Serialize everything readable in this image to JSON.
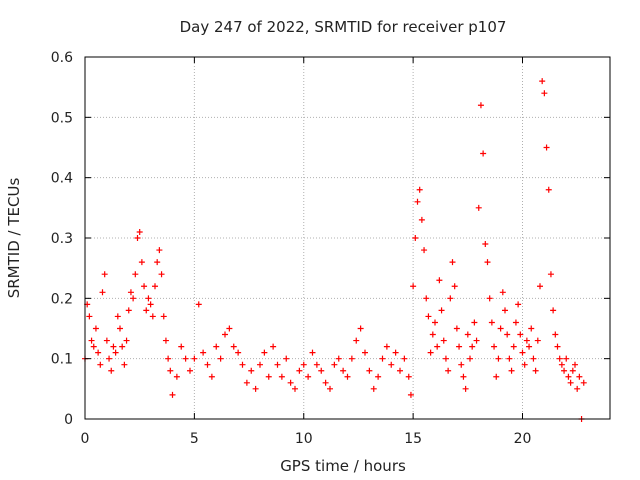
{
  "chart_data": {
    "type": "scatter",
    "title": "Day 247 of 2022, SRMTID for receiver p107",
    "xlabel": "GPS time / hours",
    "ylabel": "SRMTID / TECUs",
    "xlim": [
      0,
      24
    ],
    "ylim": [
      0,
      0.6
    ],
    "xticks": [
      0,
      5,
      10,
      15,
      20
    ],
    "yticks": [
      0,
      0.1,
      0.2,
      0.3,
      0.4,
      0.5,
      0.6
    ],
    "xtick_labels": [
      "0",
      "5",
      "10",
      "15",
      "20"
    ],
    "ytick_labels": [
      "0",
      "0.1",
      "0.2",
      "0.3",
      "0.4",
      "0.5",
      "0.6"
    ],
    "grid": true,
    "marker": "+",
    "color": "#ff0000",
    "series": [
      {
        "name": "SRMTID",
        "x": [
          0.0,
          0.1,
          0.2,
          0.3,
          0.4,
          0.5,
          0.6,
          0.7,
          0.8,
          0.9,
          1.0,
          1.1,
          1.2,
          1.3,
          1.4,
          1.5,
          1.6,
          1.7,
          1.8,
          1.9,
          2.0,
          2.1,
          2.2,
          2.3,
          2.4,
          2.5,
          2.6,
          2.7,
          2.8,
          2.9,
          3.0,
          3.1,
          3.2,
          3.3,
          3.4,
          3.5,
          3.6,
          3.7,
          3.8,
          3.9,
          4.0,
          4.2,
          4.4,
          4.6,
          4.8,
          5.0,
          5.2,
          5.4,
          5.6,
          5.8,
          6.0,
          6.2,
          6.4,
          6.6,
          6.8,
          7.0,
          7.2,
          7.4,
          7.6,
          7.8,
          8.0,
          8.2,
          8.4,
          8.6,
          8.8,
          9.0,
          9.2,
          9.4,
          9.6,
          9.8,
          10.0,
          10.2,
          10.4,
          10.6,
          10.8,
          11.0,
          11.2,
          11.4,
          11.6,
          11.8,
          12.0,
          12.2,
          12.4,
          12.6,
          12.8,
          13.0,
          13.2,
          13.4,
          13.6,
          13.8,
          14.0,
          14.2,
          14.4,
          14.6,
          14.8,
          14.9,
          15.0,
          15.1,
          15.2,
          15.3,
          15.4,
          15.5,
          15.6,
          15.7,
          15.8,
          15.9,
          16.0,
          16.1,
          16.2,
          16.3,
          16.4,
          16.5,
          16.6,
          16.7,
          16.8,
          16.9,
          17.0,
          17.1,
          17.2,
          17.3,
          17.4,
          17.5,
          17.6,
          17.7,
          17.8,
          17.9,
          18.0,
          18.1,
          18.2,
          18.3,
          18.4,
          18.5,
          18.6,
          18.7,
          18.8,
          18.9,
          19.0,
          19.1,
          19.2,
          19.3,
          19.4,
          19.5,
          19.6,
          19.7,
          19.8,
          19.9,
          20.0,
          20.1,
          20.2,
          20.3,
          20.4,
          20.5,
          20.6,
          20.7,
          20.8,
          20.9,
          21.0,
          21.1,
          21.2,
          21.3,
          21.4,
          21.5,
          21.6,
          21.7,
          21.8,
          21.9,
          22.0,
          22.1,
          22.2,
          22.3,
          22.4,
          22.5,
          22.6,
          22.7,
          22.8
        ],
        "y": [
          0.1,
          0.19,
          0.17,
          0.13,
          0.12,
          0.15,
          0.11,
          0.09,
          0.21,
          0.24,
          0.13,
          0.1,
          0.08,
          0.12,
          0.11,
          0.17,
          0.15,
          0.12,
          0.09,
          0.13,
          0.18,
          0.21,
          0.2,
          0.24,
          0.3,
          0.31,
          0.26,
          0.22,
          0.18,
          0.2,
          0.19,
          0.17,
          0.22,
          0.26,
          0.28,
          0.24,
          0.17,
          0.13,
          0.1,
          0.08,
          0.04,
          0.07,
          0.12,
          0.1,
          0.08,
          0.1,
          0.19,
          0.11,
          0.09,
          0.07,
          0.12,
          0.1,
          0.14,
          0.15,
          0.12,
          0.11,
          0.09,
          0.06,
          0.08,
          0.05,
          0.09,
          0.11,
          0.07,
          0.12,
          0.09,
          0.07,
          0.1,
          0.06,
          0.05,
          0.08,
          0.09,
          0.07,
          0.11,
          0.09,
          0.08,
          0.06,
          0.05,
          0.09,
          0.1,
          0.08,
          0.07,
          0.1,
          0.13,
          0.15,
          0.11,
          0.08,
          0.05,
          0.07,
          0.1,
          0.12,
          0.09,
          0.11,
          0.08,
          0.1,
          0.07,
          0.04,
          0.22,
          0.3,
          0.36,
          0.38,
          0.33,
          0.28,
          0.2,
          0.17,
          0.11,
          0.14,
          0.16,
          0.12,
          0.23,
          0.18,
          0.13,
          0.1,
          0.08,
          0.2,
          0.26,
          0.22,
          0.15,
          0.12,
          0.09,
          0.07,
          0.05,
          0.14,
          0.1,
          0.12,
          0.16,
          0.13,
          0.35,
          0.52,
          0.44,
          0.29,
          0.26,
          0.2,
          0.16,
          0.12,
          0.07,
          0.1,
          0.15,
          0.21,
          0.18,
          0.14,
          0.1,
          0.08,
          0.12,
          0.16,
          0.19,
          0.14,
          0.11,
          0.09,
          0.13,
          0.12,
          0.15,
          0.1,
          0.08,
          0.13,
          0.22,
          0.56,
          0.54,
          0.45,
          0.38,
          0.24,
          0.18,
          0.14,
          0.12,
          0.1,
          0.09,
          0.08,
          0.1,
          0.07,
          0.06,
          0.08,
          0.09,
          0.05,
          0.07,
          0.0,
          0.06
        ]
      }
    ]
  }
}
